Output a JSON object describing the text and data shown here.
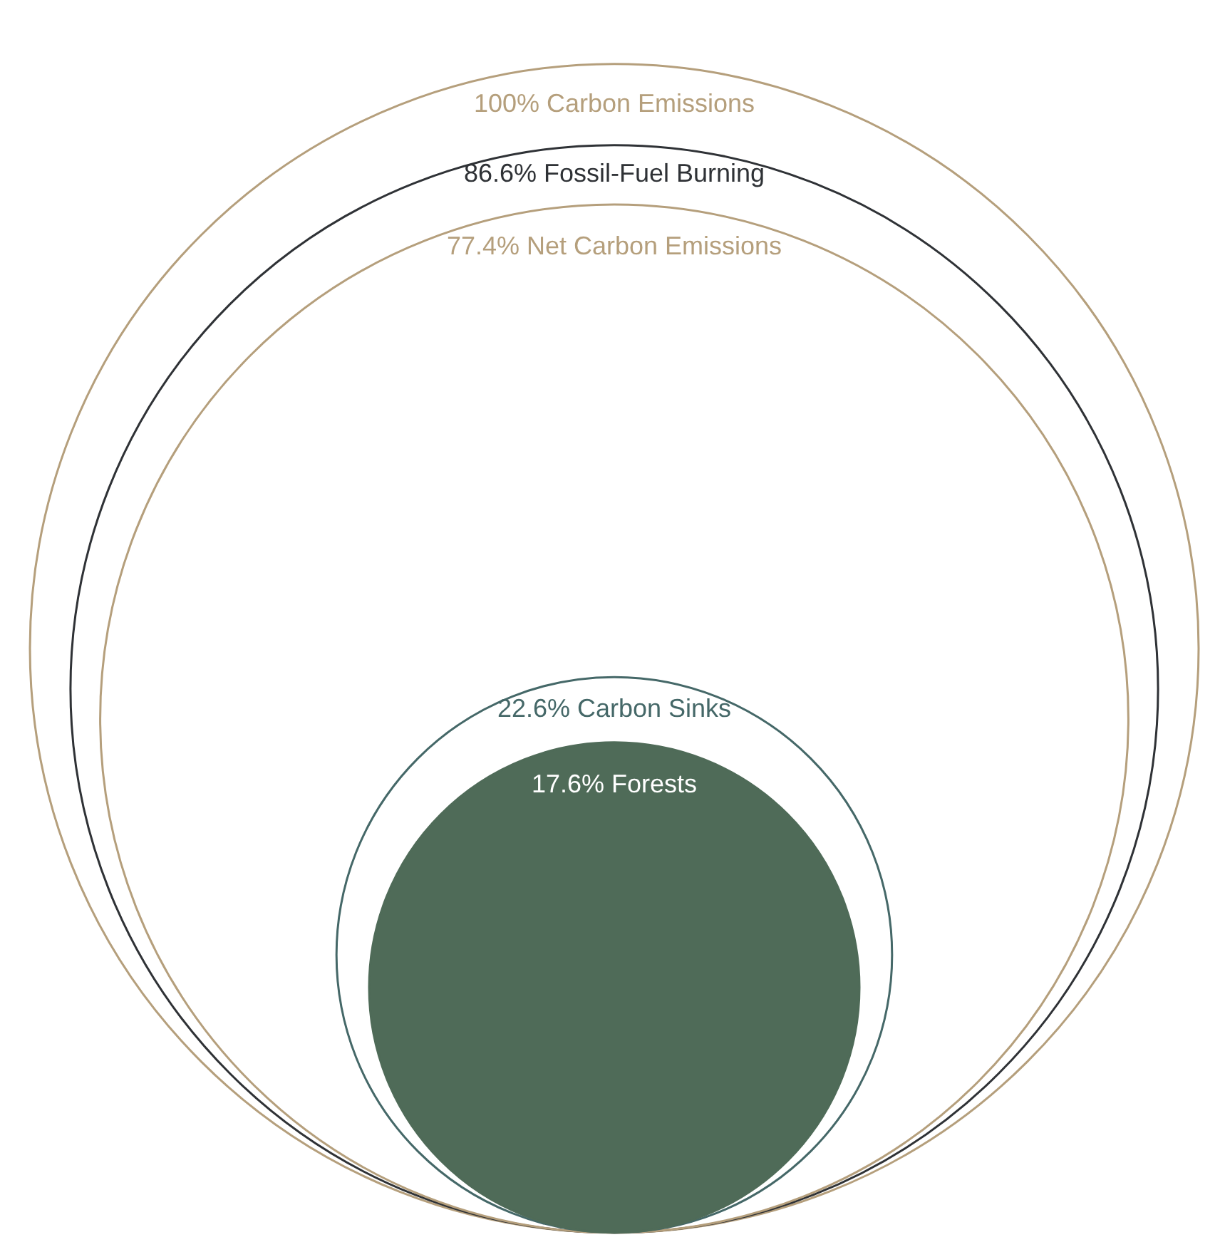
{
  "chart_data": {
    "type": "other",
    "categories": [
      "Carbon Emissions",
      "Fossil-Fuel Burning",
      "Net Carbon Emissions",
      "Carbon Sinks",
      "Forests"
    ],
    "values": [
      100,
      86.6,
      77.4,
      22.6,
      17.6
    ],
    "value_labels": [
      "100%",
      "86.6%",
      "77.4%",
      "22.6%",
      "17.6%"
    ],
    "colors": [
      "#b59f7c",
      "#2f3236",
      "#b59f7c",
      "#456868",
      "#4f6b58"
    ]
  }
}
